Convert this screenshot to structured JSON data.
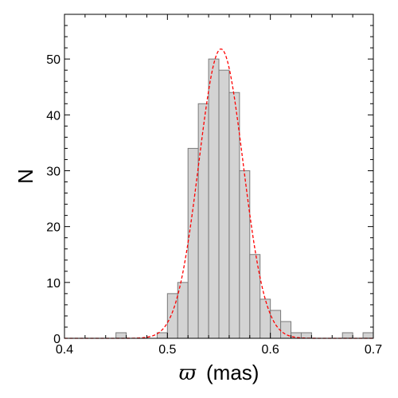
{
  "chart_data": {
    "type": "bar",
    "xlabel_symbol": "ϖ",
    "xlabel_unit": "(mas)",
    "ylabel": "N",
    "xlim": [
      0.4,
      0.7
    ],
    "ylim": [
      0,
      58
    ],
    "bin_width": 0.01,
    "bins": [
      {
        "left": 0.45,
        "count": 1
      },
      {
        "left": 0.49,
        "count": 1
      },
      {
        "left": 0.5,
        "count": 8
      },
      {
        "left": 0.51,
        "count": 10
      },
      {
        "left": 0.52,
        "count": 34
      },
      {
        "left": 0.53,
        "count": 42
      },
      {
        "left": 0.54,
        "count": 50
      },
      {
        "left": 0.55,
        "count": 48
      },
      {
        "left": 0.56,
        "count": 44
      },
      {
        "left": 0.57,
        "count": 30
      },
      {
        "left": 0.58,
        "count": 15
      },
      {
        "left": 0.59,
        "count": 7
      },
      {
        "left": 0.6,
        "count": 5
      },
      {
        "left": 0.61,
        "count": 3
      },
      {
        "left": 0.62,
        "count": 1
      },
      {
        "left": 0.63,
        "count": 1
      },
      {
        "left": 0.67,
        "count": 1
      },
      {
        "left": 0.69,
        "count": 1
      }
    ],
    "gaussian_fit": {
      "mean": 0.552,
      "sigma": 0.0215,
      "peak": 51.8
    },
    "x_ticks": [
      {
        "value": 0.4,
        "label": "0.4"
      },
      {
        "value": 0.5,
        "label": "0.5"
      },
      {
        "value": 0.6,
        "label": "0.6"
      },
      {
        "value": 0.7,
        "label": "0.7"
      }
    ],
    "y_ticks": [
      {
        "value": 0,
        "label": "0"
      },
      {
        "value": 10,
        "label": "10"
      },
      {
        "value": 20,
        "label": "20"
      },
      {
        "value": 30,
        "label": "30"
      },
      {
        "value": 40,
        "label": "40"
      },
      {
        "value": 50,
        "label": "50"
      }
    ],
    "colors": {
      "bar_fill": "#d3d3d3",
      "bar_edge": "#7a7a7a",
      "fit_line": "#ff0000",
      "axes": "#000000"
    }
  }
}
